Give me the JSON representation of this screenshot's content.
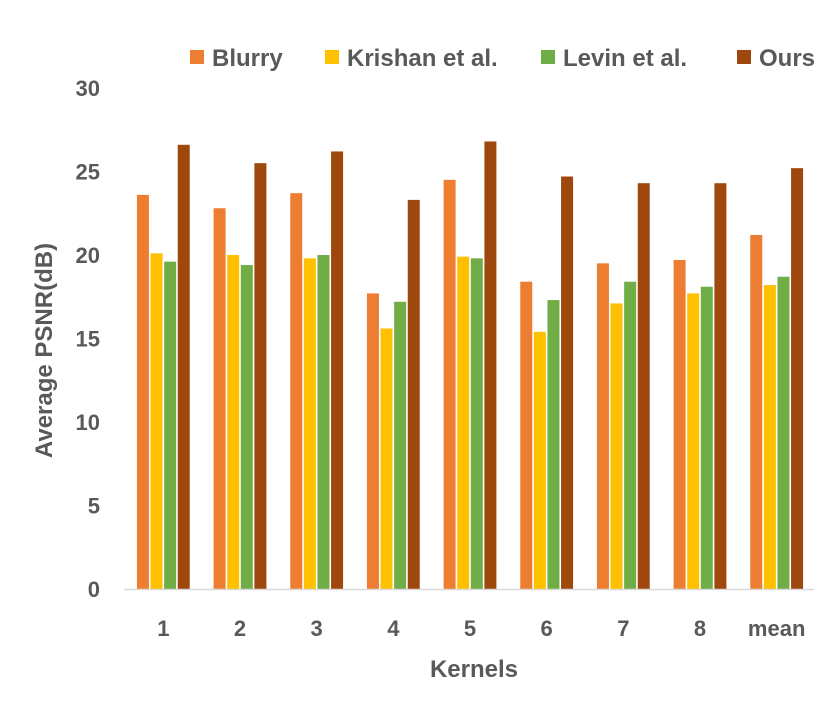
{
  "chart_data": {
    "type": "bar",
    "title": "",
    "xlabel": "Kernels",
    "ylabel": "Average PSNR(dB)",
    "ylim": [
      0,
      30
    ],
    "yticks": [
      0,
      5,
      10,
      15,
      20,
      25,
      30
    ],
    "grid": false,
    "legend_position": "top",
    "categories": [
      "1",
      "2",
      "3",
      "4",
      "5",
      "6",
      "7",
      "8",
      "mean"
    ],
    "series": [
      {
        "name": "Blurry",
        "color": "#ED7D31",
        "values": [
          23.6,
          22.8,
          23.7,
          17.7,
          24.5,
          18.4,
          19.5,
          19.7,
          21.2
        ]
      },
      {
        "name": "Krishan et al.",
        "color": "#FFC000",
        "values": [
          20.1,
          20.0,
          19.8,
          15.6,
          19.9,
          15.4,
          17.1,
          17.7,
          18.2
        ]
      },
      {
        "name": "Levin et al.",
        "color": "#70AD47",
        "values": [
          19.6,
          19.4,
          20.0,
          17.2,
          19.8,
          17.3,
          18.4,
          18.1,
          18.7
        ]
      },
      {
        "name": "Ours",
        "color": "#9E480E",
        "values": [
          26.6,
          25.5,
          26.2,
          23.3,
          26.8,
          24.7,
          24.3,
          24.3,
          25.2
        ]
      }
    ]
  }
}
